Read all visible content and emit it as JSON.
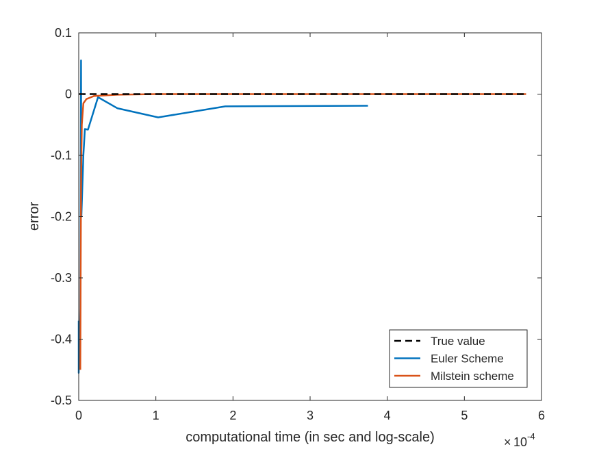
{
  "chart_data": {
    "type": "line",
    "title": "",
    "xlabel": "computational time (in sec and log-scale)",
    "ylabel": "error",
    "x_exponent_label": "10",
    "x_exponent_power": "-4",
    "xlim": [
      0,
      6
    ],
    "ylim": [
      -0.5,
      0.1
    ],
    "xticks": [
      0,
      1,
      2,
      3,
      4,
      5,
      6
    ],
    "xtick_labels": [
      "0",
      "1",
      "2",
      "3",
      "4",
      "5",
      "6"
    ],
    "yticks": [
      0.1,
      0,
      -0.1,
      -0.2,
      -0.3,
      -0.4,
      -0.5
    ],
    "ytick_labels": [
      "0.1",
      "0",
      "-0.1",
      "-0.2",
      "-0.3",
      "-0.4",
      "-0.5"
    ],
    "legend_position": "bottom-right",
    "grid": false,
    "series": [
      {
        "name": "True value",
        "color": "#000000",
        "dash": "dashed",
        "points": [
          [
            0,
            0
          ],
          [
            5.8,
            0
          ]
        ]
      },
      {
        "name": "Euler Scheme",
        "color": "#0072BD",
        "dash": "solid",
        "points": [
          [
            0.0,
            -0.37
          ],
          [
            0.0,
            -0.455
          ],
          [
            0.02,
            -0.35
          ],
          [
            0.03,
            0.055
          ],
          [
            0.035,
            -0.2
          ],
          [
            0.06,
            -0.1
          ],
          [
            0.08,
            -0.057
          ],
          [
            0.12,
            -0.058
          ],
          [
            0.25,
            -0.005
          ],
          [
            0.5,
            -0.023
          ],
          [
            1.03,
            -0.038
          ],
          [
            1.9,
            -0.02
          ],
          [
            3.75,
            -0.019
          ]
        ]
      },
      {
        "name": "Milstein scheme",
        "color": "#D95319",
        "dash": "solid",
        "points": [
          [
            0.02,
            -0.45
          ],
          [
            0.025,
            -0.3
          ],
          [
            0.03,
            -0.15
          ],
          [
            0.04,
            -0.05
          ],
          [
            0.06,
            -0.015
          ],
          [
            0.1,
            -0.008
          ],
          [
            0.2,
            -0.003
          ],
          [
            0.5,
            -0.001
          ],
          [
            1.0,
            0
          ],
          [
            2.0,
            0
          ],
          [
            3.0,
            0
          ],
          [
            4.0,
            0
          ],
          [
            5.8,
            0
          ]
        ]
      }
    ]
  }
}
